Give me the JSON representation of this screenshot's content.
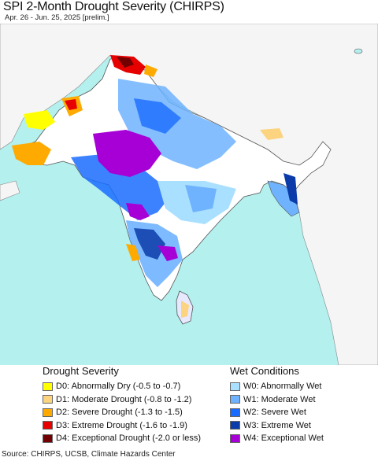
{
  "header": {
    "title": "SPI 2-Month Drought Severity (CHIRPS)",
    "subtitle": "Apr. 26 - Jun. 25, 2025 [prelim.]"
  },
  "colors": {
    "ocean": "#b3f0ee",
    "land_outside": "#f5f5f5",
    "land_normal": "#ffffff",
    "border": "#555555"
  },
  "legend": {
    "drought": {
      "title": "Drought Severity",
      "items": [
        {
          "label": "D0: Abnormally Dry (-0.5 to -0.7)",
          "color": "#ffff00"
        },
        {
          "label": "D1: Moderate Drought (-0.8 to -1.2)",
          "color": "#fcd37f"
        },
        {
          "label": "D2: Severe Drought (-1.3 to -1.5)",
          "color": "#ffaa00"
        },
        {
          "label": "D3: Extreme Drought (-1.6 to -1.9)",
          "color": "#e60000"
        },
        {
          "label": "D4: Exceptional Drought (-2.0 or less)",
          "color": "#730000"
        }
      ]
    },
    "wet": {
      "title": "Wet Conditions",
      "items": [
        {
          "label": "W0: Abnormally Wet",
          "color": "#aae0ff"
        },
        {
          "label": "W1: Moderate Wet",
          "color": "#6fb3ff"
        },
        {
          "label": "W2: Severe Wet",
          "color": "#1a6cff"
        },
        {
          "label": "W3: Extreme Wet",
          "color": "#0a3ba8"
        },
        {
          "label": "W4: Exceptional Wet",
          "color": "#a600d6"
        }
      ]
    }
  },
  "footer": {
    "source": "Source: CHIRPS, UCSB, Climate Hazards Center"
  }
}
